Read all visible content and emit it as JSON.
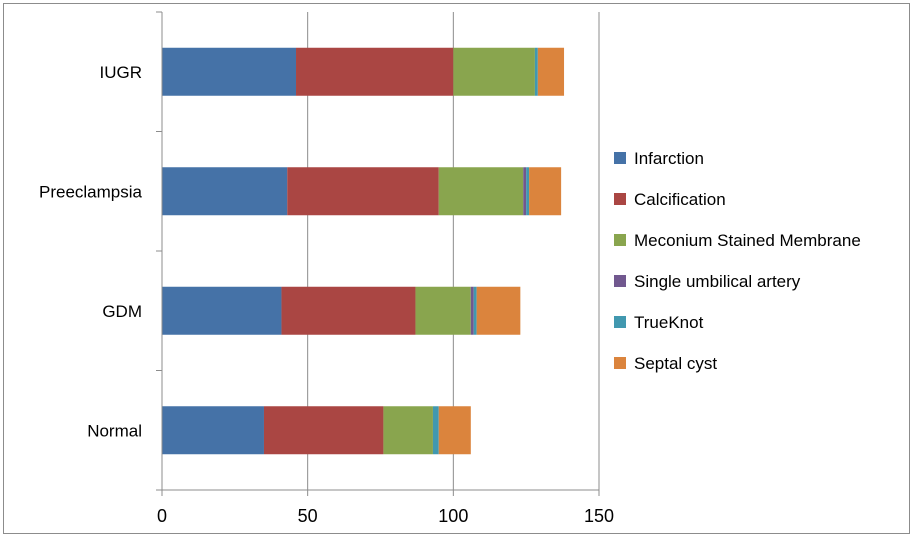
{
  "chart_data": {
    "type": "bar",
    "orientation": "horizontal",
    "stacked": true,
    "title": "",
    "xlabel": "",
    "ylabel": "",
    "categories": [
      "IUGR",
      "Preeclampsia",
      "GDM",
      "Normal"
    ],
    "xlim": [
      0,
      150
    ],
    "x_ticks": [
      0,
      50,
      100,
      150
    ],
    "grid": true,
    "legend_position": "right",
    "series": [
      {
        "name": "Infarction",
        "color": "#4572A7",
        "values": [
          46,
          43,
          41,
          35
        ]
      },
      {
        "name": "Calcification",
        "color": "#AA4643",
        "values": [
          54,
          52,
          46,
          41
        ]
      },
      {
        "name": "Meconium Stained Membrane",
        "color": "#89A54E",
        "values": [
          28,
          29,
          19,
          17
        ]
      },
      {
        "name": "Single umbilical artery",
        "color": "#71588F",
        "values": [
          0,
          1,
          1,
          0
        ]
      },
      {
        "name": "TrueKnot",
        "color": "#4198AF",
        "values": [
          1,
          1,
          1,
          2
        ]
      },
      {
        "name": "Septal cyst",
        "color": "#DB843D",
        "values": [
          9,
          11,
          15,
          11
        ]
      }
    ]
  }
}
